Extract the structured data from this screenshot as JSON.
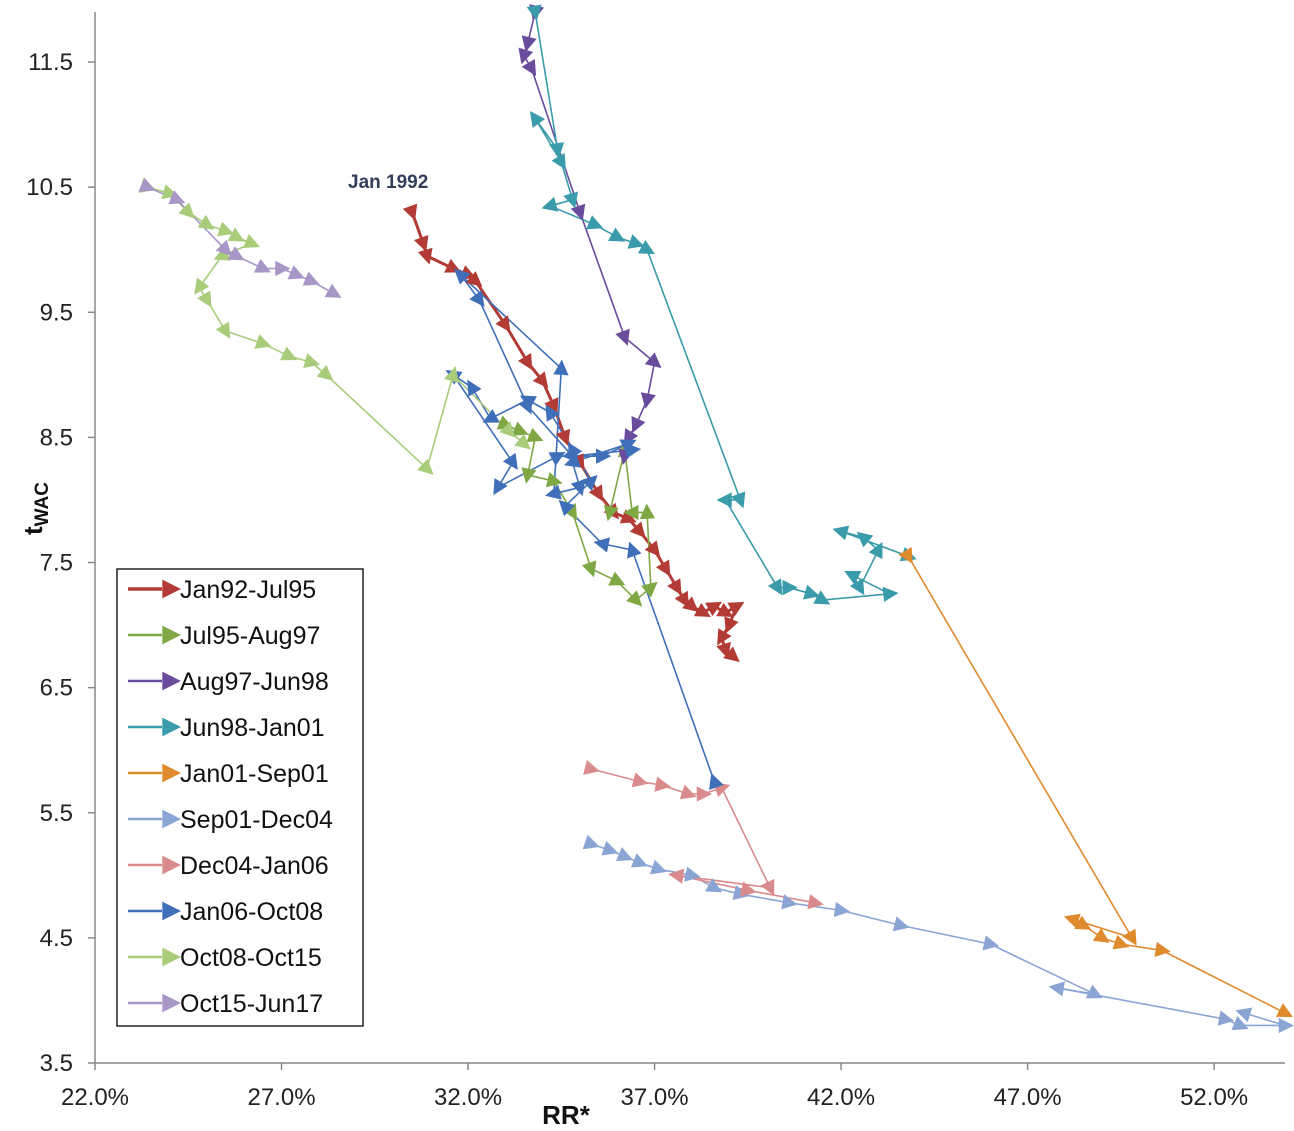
{
  "chart_data": {
    "type": "line",
    "title": "",
    "xlabel": "RR*",
    "ylabel": "t",
    "ylabel_sub": "WAC",
    "xlim": [
      22.0,
      53.9
    ],
    "ylim": [
      3.5,
      11.9
    ],
    "x_ticks": [
      "22.0%",
      "27.0%",
      "32.0%",
      "37.0%",
      "42.0%",
      "47.0%",
      "52.0%"
    ],
    "x_tick_values": [
      22,
      27,
      32,
      37,
      42,
      47,
      52
    ],
    "y_ticks": [
      "3.5",
      "4.5",
      "5.5",
      "6.5",
      "7.5",
      "8.5",
      "9.5",
      "10.5",
      "11.5"
    ],
    "y_tick_values": [
      3.5,
      4.5,
      5.5,
      6.5,
      7.5,
      8.5,
      9.5,
      10.5,
      11.5
    ],
    "grid": false,
    "legend_position": "bottom-left",
    "annotations": [
      {
        "text": "Jan 1992",
        "x": 30.5,
        "y": 10.6
      }
    ],
    "series": [
      {
        "name": "Jan92-Jul95",
        "color": "#b33b36",
        "points": [
          [
            30.5,
            10.3
          ],
          [
            30.8,
            10.05
          ],
          [
            30.9,
            9.95
          ],
          [
            31.6,
            9.85
          ],
          [
            32.0,
            9.8
          ],
          [
            32.2,
            9.75
          ],
          [
            33.0,
            9.4
          ],
          [
            33.6,
            9.1
          ],
          [
            34.0,
            8.95
          ],
          [
            34.3,
            8.75
          ],
          [
            34.6,
            8.5
          ],
          [
            35.0,
            8.3
          ],
          [
            35.5,
            8.05
          ],
          [
            35.9,
            7.9
          ],
          [
            36.3,
            7.85
          ],
          [
            36.6,
            7.75
          ],
          [
            37.0,
            7.6
          ],
          [
            37.3,
            7.45
          ],
          [
            37.6,
            7.3
          ],
          [
            37.8,
            7.2
          ],
          [
            38.0,
            7.15
          ],
          [
            38.3,
            7.1
          ],
          [
            38.6,
            7.15
          ],
          [
            38.9,
            7.1
          ],
          [
            39.2,
            7.15
          ],
          [
            39.0,
            7.0
          ],
          [
            38.8,
            6.9
          ],
          [
            38.9,
            6.8
          ],
          [
            39.1,
            6.75
          ]
        ]
      },
      {
        "name": "Jul95-Aug97",
        "color": "#7fa844",
        "points": [
          [
            33.0,
            8.6
          ],
          [
            33.4,
            8.55
          ],
          [
            33.8,
            8.5
          ],
          [
            33.6,
            8.2
          ],
          [
            34.3,
            8.15
          ],
          [
            34.8,
            7.9
          ],
          [
            35.3,
            7.45
          ],
          [
            36.0,
            7.35
          ],
          [
            36.5,
            7.2
          ],
          [
            36.9,
            7.3
          ],
          [
            36.8,
            7.9
          ],
          [
            36.4,
            7.9
          ],
          [
            36.2,
            8.4
          ],
          [
            35.8,
            7.9
          ]
        ]
      },
      {
        "name": "Aug97-Jun98",
        "color": "#6a4c9c",
        "points": [
          [
            33.8,
            11.9
          ],
          [
            33.6,
            11.65
          ],
          [
            33.5,
            11.55
          ],
          [
            33.7,
            11.45
          ],
          [
            35.0,
            10.3
          ],
          [
            36.2,
            9.3
          ],
          [
            37.0,
            9.1
          ],
          [
            36.8,
            8.8
          ],
          [
            36.5,
            8.6
          ],
          [
            36.3,
            8.5
          ],
          [
            36.2,
            8.35
          ]
        ]
      },
      {
        "name": "Jun98-Jan01",
        "color": "#3a9bab",
        "points": [
          [
            33.8,
            11.9
          ],
          [
            34.4,
            10.8
          ],
          [
            33.8,
            11.05
          ],
          [
            34.5,
            10.7
          ],
          [
            34.8,
            10.4
          ],
          [
            34.2,
            10.35
          ],
          [
            35.4,
            10.2
          ],
          [
            36.0,
            10.1
          ],
          [
            36.5,
            10.05
          ],
          [
            36.8,
            10.0
          ],
          [
            39.3,
            8.0
          ],
          [
            38.9,
            8.0
          ],
          [
            40.3,
            7.3
          ],
          [
            40.6,
            7.3
          ],
          [
            41.2,
            7.25
          ],
          [
            41.5,
            7.2
          ],
          [
            43.3,
            7.25
          ],
          [
            42.3,
            7.4
          ],
          [
            42.5,
            7.3
          ],
          [
            43.0,
            7.6
          ],
          [
            42.6,
            7.7
          ],
          [
            42.0,
            7.75
          ],
          [
            43.8,
            7.55
          ]
        ]
      },
      {
        "name": "Jan01-Sep01",
        "color": "#e08a2e",
        "points": [
          [
            43.8,
            7.55
          ],
          [
            49.8,
            4.5
          ],
          [
            48.2,
            4.65
          ],
          [
            48.5,
            4.6
          ],
          [
            49.0,
            4.5
          ],
          [
            49.5,
            4.45
          ],
          [
            50.6,
            4.4
          ],
          [
            53.9,
            3.9
          ]
        ]
      },
      {
        "name": "Sep01-Dec04",
        "color": "#8aa5d4",
        "points": [
          [
            35.3,
            5.25
          ],
          [
            35.8,
            5.2
          ],
          [
            36.2,
            5.15
          ],
          [
            36.6,
            5.1
          ],
          [
            37.1,
            5.05
          ],
          [
            38.0,
            5.0
          ],
          [
            38.6,
            4.9
          ],
          [
            39.3,
            4.85
          ],
          [
            40.6,
            4.78
          ],
          [
            42.0,
            4.72
          ],
          [
            43.6,
            4.6
          ],
          [
            46.0,
            4.45
          ],
          [
            48.8,
            4.05
          ],
          [
            47.8,
            4.1
          ],
          [
            52.3,
            3.85
          ],
          [
            52.7,
            3.8
          ],
          [
            53.9,
            3.8
          ],
          [
            52.8,
            3.9
          ]
        ]
      },
      {
        "name": "Dec04-Jan06",
        "color": "#d98a8c",
        "points": [
          [
            35.3,
            5.85
          ],
          [
            36.6,
            5.75
          ],
          [
            37.2,
            5.72
          ],
          [
            37.9,
            5.65
          ],
          [
            38.3,
            5.65
          ],
          [
            38.8,
            5.7
          ],
          [
            40.1,
            4.9
          ],
          [
            37.6,
            5.0
          ],
          [
            39.5,
            4.88
          ],
          [
            41.3,
            4.78
          ]
        ]
      },
      {
        "name": "Jan06-Oct08",
        "color": "#3f6fb8",
        "points": [
          [
            38.6,
            5.75
          ],
          [
            36.4,
            7.6
          ],
          [
            35.6,
            7.65
          ],
          [
            34.6,
            7.95
          ],
          [
            35.3,
            8.15
          ],
          [
            34.8,
            8.4
          ],
          [
            34.2,
            8.7
          ],
          [
            33.6,
            8.8
          ],
          [
            32.6,
            8.65
          ],
          [
            32.1,
            8.9
          ],
          [
            31.6,
            9.0
          ],
          [
            33.2,
            8.3
          ],
          [
            32.8,
            8.1
          ],
          [
            34.4,
            8.35
          ],
          [
            35.6,
            8.35
          ],
          [
            36.3,
            8.45
          ],
          [
            34.8,
            8.3
          ],
          [
            35.0,
            8.1
          ],
          [
            34.3,
            8.05
          ],
          [
            34.5,
            9.05
          ],
          [
            31.8,
            9.8
          ],
          [
            32.3,
            9.6
          ],
          [
            33.6,
            8.75
          ],
          [
            34.8,
            8.35
          ],
          [
            36.4,
            8.4
          ]
        ]
      },
      {
        "name": "Oct08-Oct15",
        "color": "#a8cc7a",
        "points": [
          [
            23.4,
            10.5
          ],
          [
            24.0,
            10.45
          ],
          [
            24.5,
            10.3
          ],
          [
            25.0,
            10.2
          ],
          [
            25.5,
            10.15
          ],
          [
            25.8,
            10.1
          ],
          [
            26.2,
            10.05
          ],
          [
            25.4,
            9.95
          ],
          [
            24.8,
            9.7
          ],
          [
            25.0,
            9.6
          ],
          [
            25.5,
            9.35
          ],
          [
            26.5,
            9.25
          ],
          [
            27.2,
            9.15
          ],
          [
            27.8,
            9.1
          ],
          [
            28.2,
            9.0
          ],
          [
            30.9,
            8.25
          ],
          [
            31.6,
            9.0
          ],
          [
            33.1,
            8.55
          ],
          [
            33.5,
            8.45
          ]
        ]
      },
      {
        "name": "Oct15-Jun17",
        "color": "#a796c6",
        "points": [
          [
            23.4,
            10.5
          ],
          [
            24.2,
            10.4
          ],
          [
            25.5,
            10.0
          ],
          [
            25.8,
            9.95
          ],
          [
            26.5,
            9.85
          ],
          [
            27.0,
            9.85
          ],
          [
            27.4,
            9.8
          ],
          [
            27.8,
            9.75
          ],
          [
            28.4,
            9.65
          ]
        ]
      }
    ]
  }
}
